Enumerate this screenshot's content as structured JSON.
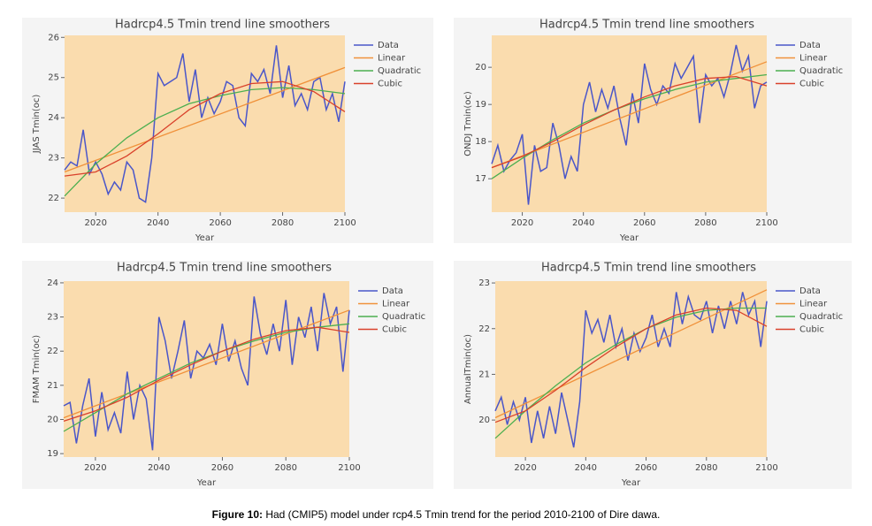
{
  "chart_data": [
    {
      "type": "line",
      "title": "Hadrcp4.5 Tmin trend line smoothers",
      "xlabel": "Year",
      "ylabel": "JJAS Tmin(oc)",
      "xlim": [
        2010,
        2100
      ],
      "xticks": [
        2020,
        2040,
        2060,
        2080,
        2100
      ],
      "ylim": [
        21.65,
        26.05
      ],
      "yticks": [
        22,
        23,
        24,
        25,
        26
      ],
      "legend": "right",
      "series": [
        {
          "name": "Data",
          "color": "#4a56c9",
          "x": [
            2010,
            2012,
            2014,
            2016,
            2018,
            2020,
            2022,
            2024,
            2026,
            2028,
            2030,
            2032,
            2034,
            2036,
            2038,
            2040,
            2042,
            2044,
            2046,
            2048,
            2050,
            2052,
            2054,
            2056,
            2058,
            2060,
            2062,
            2064,
            2066,
            2068,
            2070,
            2072,
            2074,
            2076,
            2078,
            2080,
            2082,
            2084,
            2086,
            2088,
            2090,
            2092,
            2094,
            2096,
            2098,
            2100
          ],
          "values": [
            22.7,
            22.9,
            22.8,
            23.7,
            22.6,
            22.9,
            22.6,
            22.1,
            22.4,
            22.2,
            22.9,
            22.7,
            22.0,
            21.9,
            23.0,
            25.1,
            24.8,
            24.9,
            25.0,
            25.6,
            24.4,
            25.2,
            24.0,
            24.5,
            24.1,
            24.4,
            24.9,
            24.8,
            24.0,
            23.8,
            25.1,
            24.9,
            25.2,
            24.6,
            25.8,
            24.5,
            25.3,
            24.3,
            24.6,
            24.2,
            24.9,
            25.0,
            24.2,
            24.6,
            23.9,
            24.9
          ]
        },
        {
          "name": "Linear",
          "color": "#f0913a",
          "x": [
            2010,
            2100
          ],
          "values": [
            22.65,
            25.25
          ]
        },
        {
          "name": "Quadratic",
          "color": "#4caf50",
          "x": [
            2010,
            2020,
            2030,
            2040,
            2050,
            2060,
            2070,
            2080,
            2090,
            2100
          ],
          "values": [
            22.05,
            22.85,
            23.5,
            24.0,
            24.35,
            24.55,
            24.7,
            24.75,
            24.7,
            24.6
          ]
        },
        {
          "name": "Cubic",
          "color": "#d9412b",
          "x": [
            2010,
            2020,
            2030,
            2040,
            2050,
            2060,
            2070,
            2080,
            2090,
            2100
          ],
          "values": [
            22.55,
            22.65,
            23.05,
            23.6,
            24.2,
            24.6,
            24.85,
            24.9,
            24.65,
            24.15
          ]
        }
      ]
    },
    {
      "type": "line",
      "title": "Hadrcp4.5 Tmin trend line smoothers",
      "xlabel": "Year",
      "ylabel": "ONDJ Tmin(oc)",
      "xlim": [
        2010,
        2100
      ],
      "xticks": [
        2020,
        2040,
        2060,
        2080,
        2100
      ],
      "ylim": [
        16.1,
        20.86
      ],
      "yticks": [
        17,
        18,
        19,
        20
      ],
      "legend": "right",
      "series": [
        {
          "name": "Data",
          "color": "#4a56c9",
          "x": [
            2010,
            2012,
            2014,
            2016,
            2018,
            2020,
            2022,
            2024,
            2026,
            2028,
            2030,
            2032,
            2034,
            2036,
            2038,
            2040,
            2042,
            2044,
            2046,
            2048,
            2050,
            2052,
            2054,
            2056,
            2058,
            2060,
            2062,
            2064,
            2066,
            2068,
            2070,
            2072,
            2074,
            2076,
            2078,
            2080,
            2082,
            2084,
            2086,
            2088,
            2090,
            2092,
            2094,
            2096,
            2098,
            2100
          ],
          "values": [
            17.4,
            17.9,
            17.2,
            17.5,
            17.7,
            18.2,
            16.3,
            17.9,
            17.2,
            17.3,
            18.5,
            17.9,
            17.0,
            17.6,
            17.2,
            19.0,
            19.6,
            18.8,
            19.4,
            18.9,
            19.5,
            18.6,
            17.9,
            19.3,
            18.5,
            20.1,
            19.4,
            19.0,
            19.5,
            19.3,
            20.1,
            19.7,
            20.0,
            20.3,
            18.5,
            19.8,
            19.5,
            19.7,
            19.2,
            19.8,
            20.6,
            19.9,
            20.3,
            18.9,
            19.5,
            19.6
          ]
        },
        {
          "name": "Linear",
          "color": "#f0913a",
          "x": [
            2010,
            2100
          ],
          "values": [
            17.3,
            20.15
          ]
        },
        {
          "name": "Quadratic",
          "color": "#4caf50",
          "x": [
            2010,
            2020,
            2030,
            2040,
            2050,
            2060,
            2070,
            2080,
            2090,
            2100
          ],
          "values": [
            17.0,
            17.55,
            18.05,
            18.5,
            18.85,
            19.15,
            19.4,
            19.6,
            19.7,
            19.8
          ]
        },
        {
          "name": "Cubic",
          "color": "#d9412b",
          "x": [
            2010,
            2020,
            2030,
            2040,
            2050,
            2060,
            2070,
            2080,
            2090,
            2100
          ],
          "values": [
            17.3,
            17.6,
            18.0,
            18.45,
            18.85,
            19.2,
            19.5,
            19.7,
            19.75,
            19.5
          ]
        }
      ]
    },
    {
      "type": "line",
      "title": "Hadrcp4.5 Tmin trend line smoothers",
      "xlabel": "Year",
      "ylabel": "FMAM Tmin(oc)",
      "xlim": [
        2010,
        2100
      ],
      "xticks": [
        2020,
        2040,
        2060,
        2080,
        2100
      ],
      "ylim": [
        18.9,
        24.05
      ],
      "yticks": [
        19,
        20,
        21,
        22,
        23,
        24
      ],
      "legend": "right",
      "series": [
        {
          "name": "Data",
          "color": "#4a56c9",
          "x": [
            2010,
            2012,
            2014,
            2016,
            2018,
            2020,
            2022,
            2024,
            2026,
            2028,
            2030,
            2032,
            2034,
            2036,
            2038,
            2040,
            2042,
            2044,
            2046,
            2048,
            2050,
            2052,
            2054,
            2056,
            2058,
            2060,
            2062,
            2064,
            2066,
            2068,
            2070,
            2072,
            2074,
            2076,
            2078,
            2080,
            2082,
            2084,
            2086,
            2088,
            2090,
            2092,
            2094,
            2096,
            2098,
            2100
          ],
          "values": [
            20.4,
            20.5,
            19.3,
            20.4,
            21.2,
            19.5,
            20.8,
            19.7,
            20.2,
            19.6,
            21.4,
            20.0,
            21.0,
            20.6,
            19.1,
            23.0,
            22.3,
            21.2,
            22.0,
            22.9,
            21.2,
            22.0,
            21.8,
            22.2,
            21.6,
            22.8,
            21.7,
            22.3,
            21.5,
            21.0,
            23.6,
            22.5,
            21.9,
            22.8,
            22.0,
            23.5,
            21.6,
            23.0,
            22.4,
            23.3,
            22.0,
            23.7,
            22.8,
            23.3,
            21.4,
            23.2
          ]
        },
        {
          "name": "Linear",
          "color": "#f0913a",
          "x": [
            2010,
            2100
          ],
          "values": [
            20.05,
            23.2
          ]
        },
        {
          "name": "Quadratic",
          "color": "#4caf50",
          "x": [
            2010,
            2020,
            2030,
            2040,
            2050,
            2060,
            2070,
            2080,
            2090,
            2100
          ],
          "values": [
            19.65,
            20.2,
            20.75,
            21.2,
            21.65,
            22.0,
            22.3,
            22.55,
            22.7,
            22.8
          ]
        },
        {
          "name": "Cubic",
          "color": "#d9412b",
          "x": [
            2010,
            2020,
            2030,
            2040,
            2050,
            2060,
            2070,
            2080,
            2090,
            2100
          ],
          "values": [
            19.95,
            20.25,
            20.65,
            21.15,
            21.6,
            22.0,
            22.35,
            22.6,
            22.7,
            22.55
          ]
        }
      ]
    },
    {
      "type": "line",
      "title": "Hadrcp4.5 Tmin trend line smoothers",
      "xlabel": "Year",
      "ylabel": "AnnualTmin(oc)",
      "xlim": [
        2010,
        2100
      ],
      "xticks": [
        2020,
        2040,
        2060,
        2080,
        2100
      ],
      "ylim": [
        19.19,
        23.04
      ],
      "yticks": [
        20,
        21,
        22,
        23
      ],
      "legend": "right",
      "series": [
        {
          "name": "Data",
          "color": "#4a56c9",
          "x": [
            2010,
            2012,
            2014,
            2016,
            2018,
            2020,
            2022,
            2024,
            2026,
            2028,
            2030,
            2032,
            2034,
            2036,
            2038,
            2040,
            2042,
            2044,
            2046,
            2048,
            2050,
            2052,
            2054,
            2056,
            2058,
            2060,
            2062,
            2064,
            2066,
            2068,
            2070,
            2072,
            2074,
            2076,
            2078,
            2080,
            2082,
            2084,
            2086,
            2088,
            2090,
            2092,
            2094,
            2096,
            2098,
            2100
          ],
          "values": [
            20.2,
            20.5,
            19.9,
            20.4,
            20.0,
            20.5,
            19.5,
            20.2,
            19.6,
            20.3,
            19.7,
            20.6,
            20.0,
            19.4,
            20.4,
            22.4,
            21.9,
            22.2,
            21.7,
            22.3,
            21.6,
            22.0,
            21.3,
            21.9,
            21.5,
            21.8,
            22.3,
            21.6,
            22.0,
            21.6,
            22.8,
            22.1,
            22.7,
            22.3,
            22.2,
            22.6,
            21.9,
            22.5,
            22.0,
            22.6,
            22.1,
            22.8,
            22.3,
            22.6,
            21.6,
            22.6
          ]
        },
        {
          "name": "Linear",
          "color": "#f0913a",
          "x": [
            2010,
            2100
          ],
          "values": [
            20.05,
            22.85
          ]
        },
        {
          "name": "Quadratic",
          "color": "#4caf50",
          "x": [
            2010,
            2020,
            2030,
            2040,
            2050,
            2060,
            2070,
            2080,
            2090,
            2100
          ],
          "values": [
            19.6,
            20.2,
            20.75,
            21.25,
            21.65,
            22.0,
            22.25,
            22.4,
            22.45,
            22.45
          ]
        },
        {
          "name": "Cubic",
          "color": "#d9412b",
          "x": [
            2010,
            2020,
            2030,
            2040,
            2050,
            2060,
            2070,
            2080,
            2090,
            2100
          ],
          "values": [
            19.95,
            20.2,
            20.65,
            21.15,
            21.6,
            22.0,
            22.3,
            22.45,
            22.4,
            22.05
          ]
        }
      ]
    }
  ],
  "caption": {
    "label": "Figure 10:",
    "text": " Had (CMIP5) model under rcp4.5 Tmin  trend for the period 2010-2100 of Dire dawa."
  }
}
